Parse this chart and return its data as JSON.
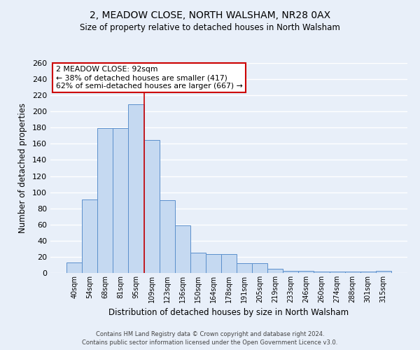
{
  "title": "2, MEADOW CLOSE, NORTH WALSHAM, NR28 0AX",
  "subtitle": "Size of property relative to detached houses in North Walsham",
  "xlabel": "Distribution of detached houses by size in North Walsham",
  "ylabel": "Number of detached properties",
  "bar_labels": [
    "40sqm",
    "54sqm",
    "68sqm",
    "81sqm",
    "95sqm",
    "109sqm",
    "123sqm",
    "136sqm",
    "150sqm",
    "164sqm",
    "178sqm",
    "191sqm",
    "205sqm",
    "219sqm",
    "233sqm",
    "246sqm",
    "260sqm",
    "274sqm",
    "288sqm",
    "301sqm",
    "315sqm"
  ],
  "bar_values": [
    13,
    91,
    179,
    179,
    209,
    165,
    90,
    59,
    25,
    23,
    23,
    12,
    12,
    5,
    3,
    3,
    2,
    2,
    2,
    2,
    3
  ],
  "bar_color": "#c5d9f1",
  "bar_edge_color": "#5b8fcc",
  "vline_x": 4.5,
  "vline_color": "#cc0000",
  "annotation_title": "2 MEADOW CLOSE: 92sqm",
  "annotation_line1": "← 38% of detached houses are smaller (417)",
  "annotation_line2": "62% of semi-detached houses are larger (667) →",
  "annotation_box_color": "#ffffff",
  "annotation_box_edge": "#cc0000",
  "ylim": [
    0,
    260
  ],
  "yticks": [
    0,
    20,
    40,
    60,
    80,
    100,
    120,
    140,
    160,
    180,
    200,
    220,
    240,
    260
  ],
  "footer1": "Contains HM Land Registry data © Crown copyright and database right 2024.",
  "footer2": "Contains public sector information licensed under the Open Government Licence v3.0.",
  "bg_color": "#e8eff9",
  "grid_color": "#ffffff"
}
